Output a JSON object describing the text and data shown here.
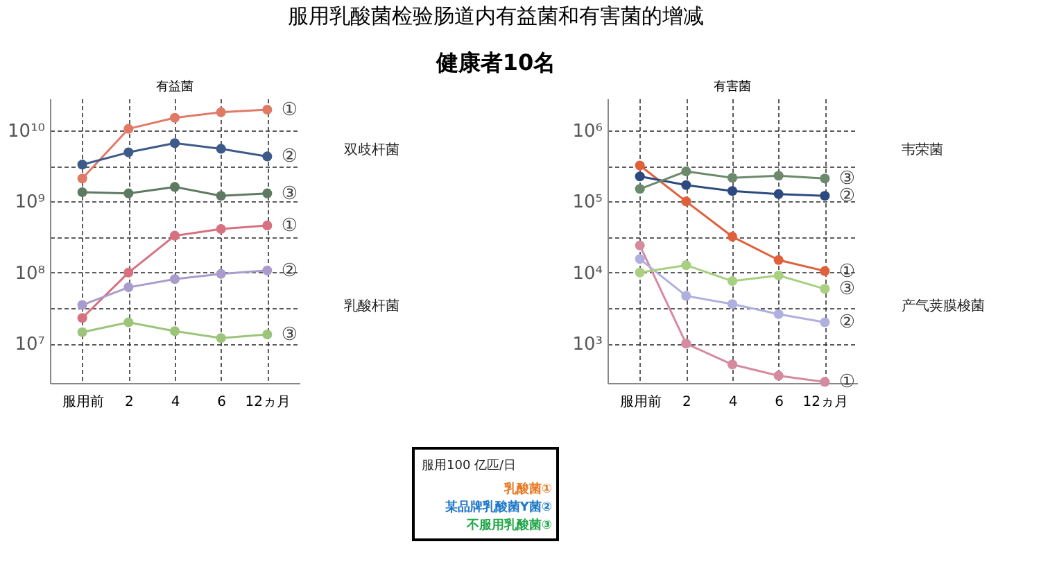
{
  "chart_data": [
    {
      "type": "other",
      "title": "服用乳酸菌检验肠道内有益菌和有害菌的增减",
      "subtitle": "健康者10名"
    },
    {
      "type": "line",
      "title": "有益菌",
      "categories": [
        "服用前",
        "2",
        "4",
        "6",
        "12ヵ月"
      ],
      "log": "y",
      "ylim": [
        2800000,
        28000000000
      ],
      "yticks": [
        {
          "value": 10000000,
          "label": "10⁷"
        },
        {
          "value": 31620000,
          "label": null
        },
        {
          "value": 100000000,
          "label": "10⁸"
        },
        {
          "value": 316200000,
          "label": null
        },
        {
          "value": 1000000000,
          "label": "10⁹"
        },
        {
          "value": 3162000000,
          "label": null
        },
        {
          "value": 10000000000,
          "label": "10¹⁰"
        }
      ],
      "grid": true,
      "marker": "circle",
      "line_style": "solid",
      "series": [
        {
          "name": "①",
          "color": "#e07a66",
          "values": [
            2100000000,
            10500000000,
            15000000000,
            18000000000,
            19500000000
          ]
        },
        {
          "name": "②",
          "color": "#3d5a8a",
          "values": [
            3300000000,
            4900000000,
            6600000000,
            5500000000,
            4300000000
          ]
        },
        {
          "name": "③",
          "color": "#5e7a62",
          "values": [
            1350000000,
            1300000000,
            1600000000,
            1200000000,
            1300000000
          ]
        },
        {
          "name": "①",
          "color": "#d7707f",
          "values": [
            23000000,
            100000000,
            330000000,
            410000000,
            460000000
          ]
        },
        {
          "name": "②",
          "color": "#a99ccc",
          "values": [
            35000000,
            62000000,
            81000000,
            96000000,
            107000000
          ]
        },
        {
          "name": "③",
          "color": "#9cc47a",
          "values": [
            14500000,
            20000000,
            15000000,
            12000000,
            13500000
          ]
        }
      ],
      "annotations": [
        "双歧杆菌",
        "乳酸杆菌"
      ]
    },
    {
      "type": "line",
      "title": "有害菌",
      "categories": [
        "服用前",
        "2",
        "4",
        "6",
        "12ヵ月"
      ],
      "log": "y",
      "ylim": [
        280,
        2800000
      ],
      "yticks": [
        {
          "value": 1000,
          "label": "10³"
        },
        {
          "value": 3162,
          "label": null
        },
        {
          "value": 10000,
          "label": "10⁴"
        },
        {
          "value": 31620,
          "label": null
        },
        {
          "value": 100000,
          "label": "10⁵"
        },
        {
          "value": 316200,
          "label": null
        },
        {
          "value": 1000000,
          "label": "10⁶"
        }
      ],
      "grid": true,
      "marker": "circle",
      "line_style": "solid",
      "series": [
        {
          "name": "①",
          "color": "#e0603a",
          "values": [
            320000,
            100000,
            32000,
            15000,
            10500
          ]
        },
        {
          "name": "②",
          "color": "#2d4a80",
          "values": [
            225000,
            170000,
            140000,
            127000,
            120000
          ]
        },
        {
          "name": "③",
          "color": "#6b8a6b",
          "values": [
            150000,
            265000,
            215000,
            230000,
            210000
          ]
        },
        {
          "name": "①",
          "color": "#d68aa0",
          "values": [
            24000,
            1000,
            510,
            355,
            290
          ]
        },
        {
          "name": "②",
          "color": "#b0b0e0",
          "values": [
            15500,
            4700,
            3600,
            2600,
            2000
          ]
        },
        {
          "name": "③",
          "color": "#a8d080",
          "values": [
            10000,
            12700,
            7600,
            9100,
            5900
          ]
        }
      ],
      "annotations": [
        "韦荣菌",
        "产气荚膜梭菌"
      ]
    },
    {
      "type": "other",
      "title": "服用100 亿匹/日",
      "annotations": [
        "乳酸菌①",
        "某品牌乳酸菌Y菌②",
        "不服用乳酸菌③"
      ],
      "colors": [
        "#e87722",
        "#1f78c8",
        "#22a84a"
      ]
    }
  ]
}
